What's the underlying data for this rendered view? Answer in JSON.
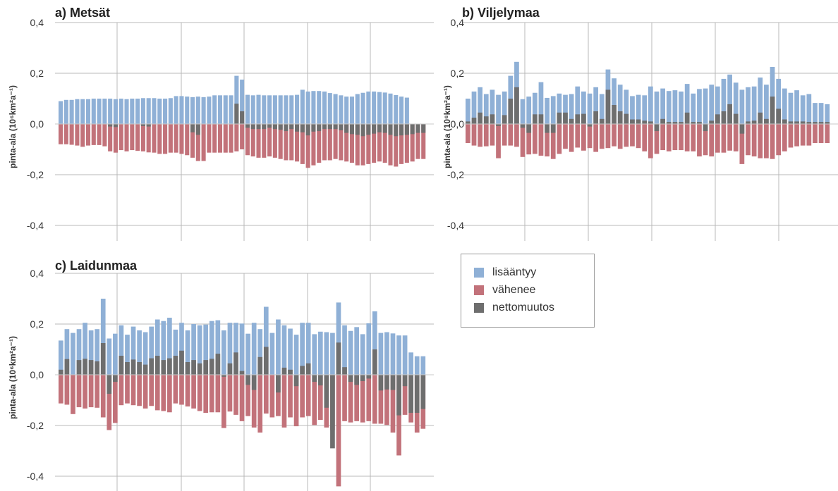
{
  "legend": [
    {
      "label": "lisääntyy",
      "color": "#8fb0d6"
    },
    {
      "label": "vähenee",
      "color": "#c2727a"
    },
    {
      "label": "nettomuutos",
      "color": "#6e6e6e"
    }
  ],
  "chart_data": [
    {
      "type": "bar",
      "title": "a) Metsät",
      "ylabel": "pinta-ala (10⁶km²a⁻¹)",
      "ylim": [
        -0.4,
        0.4
      ],
      "yticks": [
        "0,4",
        "0,2",
        "0,0",
        "-0,2",
        "-0,4"
      ],
      "grid": true,
      "series": [
        {
          "name": "lisääntyy",
          "values": [
            0.09,
            0.095,
            0.095,
            0.098,
            0.098,
            0.098,
            0.1,
            0.1,
            0.1,
            0.1,
            0.098,
            0.1,
            0.098,
            0.1,
            0.1,
            0.102,
            0.102,
            0.102,
            0.1,
            0.1,
            0.102,
            0.11,
            0.11,
            0.108,
            0.106,
            0.108,
            0.106,
            0.108,
            0.113,
            0.113,
            0.113,
            0.113,
            0.19,
            0.175,
            0.115,
            0.113,
            0.115,
            0.113,
            0.113,
            0.113,
            0.113,
            0.113,
            0.113,
            0.115,
            0.135,
            0.128,
            0.13,
            0.13,
            0.128,
            0.122,
            0.118,
            0.113,
            0.108,
            0.108,
            0.118,
            0.123,
            0.128,
            0.128,
            0.126,
            0.124,
            0.12,
            0.114,
            0.108,
            0.104
          ]
        },
        {
          "name": "vähenee",
          "values": [
            -0.08,
            -0.08,
            -0.082,
            -0.085,
            -0.09,
            -0.085,
            -0.083,
            -0.083,
            -0.088,
            -0.108,
            -0.113,
            -0.103,
            -0.108,
            -0.103,
            -0.106,
            -0.108,
            -0.112,
            -0.113,
            -0.118,
            -0.118,
            -0.113,
            -0.113,
            -0.118,
            -0.123,
            -0.133,
            -0.146,
            -0.146,
            -0.113,
            -0.113,
            -0.113,
            -0.113,
            -0.113,
            -0.108,
            -0.1,
            -0.123,
            -0.128,
            -0.133,
            -0.133,
            -0.128,
            -0.133,
            -0.138,
            -0.143,
            -0.143,
            -0.148,
            -0.158,
            -0.173,
            -0.163,
            -0.153,
            -0.143,
            -0.143,
            -0.138,
            -0.143,
            -0.148,
            -0.153,
            -0.163,
            -0.163,
            -0.158,
            -0.153,
            -0.148,
            -0.153,
            -0.163,
            -0.168,
            -0.158,
            -0.153,
            -0.148,
            -0.138,
            -0.138
          ]
        },
        {
          "name": "nettomuutos",
          "values": [
            0,
            0,
            0,
            0,
            0,
            0,
            0,
            0,
            0,
            -0.01,
            -0.012,
            0,
            0,
            0,
            0,
            -0.008,
            -0.01,
            0,
            0,
            0,
            0,
            0,
            0,
            0,
            -0.033,
            -0.043,
            0,
            0,
            0,
            0,
            0,
            0,
            0.08,
            0.05,
            -0.015,
            -0.02,
            -0.02,
            -0.02,
            -0.015,
            -0.02,
            -0.023,
            -0.028,
            -0.02,
            -0.03,
            -0.033,
            -0.045,
            -0.03,
            -0.028,
            -0.02,
            -0.02,
            -0.02,
            -0.025,
            -0.035,
            -0.04,
            -0.043,
            -0.048,
            -0.043,
            -0.038,
            -0.033,
            -0.035,
            -0.043,
            -0.048,
            -0.045,
            -0.043,
            -0.04,
            -0.035,
            -0.035
          ]
        }
      ]
    },
    {
      "type": "bar",
      "title": "b) Viljelymaa",
      "ylabel": "pinta-ala (10⁶km²a⁻¹)",
      "ylim": [
        -0.4,
        0.4
      ],
      "yticks": [
        "0,4",
        "0,2",
        "0,0",
        "-0,2",
        "-0,4"
      ],
      "grid": true,
      "series": [
        {
          "name": "lisääntyy",
          "values": [
            0.1,
            0.128,
            0.145,
            0.118,
            0.135,
            0.115,
            0.128,
            0.19,
            0.245,
            0.098,
            0.108,
            0.123,
            0.165,
            0.103,
            0.11,
            0.12,
            0.115,
            0.118,
            0.148,
            0.128,
            0.12,
            0.145,
            0.118,
            0.215,
            0.18,
            0.155,
            0.135,
            0.11,
            0.115,
            0.113,
            0.148,
            0.128,
            0.14,
            0.13,
            0.133,
            0.128,
            0.158,
            0.12,
            0.138,
            0.14,
            0.155,
            0.148,
            0.178,
            0.195,
            0.163,
            0.135,
            0.145,
            0.148,
            0.183,
            0.155,
            0.225,
            0.178,
            0.14,
            0.123,
            0.133,
            0.113,
            0.118,
            0.083,
            0.083,
            0.078
          ]
        },
        {
          "name": "vähenee",
          "values": [
            -0.075,
            -0.085,
            -0.09,
            -0.088,
            -0.085,
            -0.135,
            -0.085,
            -0.085,
            -0.09,
            -0.13,
            -0.12,
            -0.118,
            -0.125,
            -0.128,
            -0.138,
            -0.118,
            -0.098,
            -0.11,
            -0.093,
            -0.105,
            -0.095,
            -0.11,
            -0.098,
            -0.095,
            -0.088,
            -0.098,
            -0.09,
            -0.088,
            -0.095,
            -0.108,
            -0.135,
            -0.118,
            -0.103,
            -0.108,
            -0.103,
            -0.103,
            -0.108,
            -0.108,
            -0.128,
            -0.123,
            -0.128,
            -0.113,
            -0.113,
            -0.105,
            -0.108,
            -0.158,
            -0.123,
            -0.128,
            -0.135,
            -0.135,
            -0.138,
            -0.123,
            -0.108,
            -0.093,
            -0.088,
            -0.085,
            -0.085,
            -0.075,
            -0.075,
            -0.075
          ]
        },
        {
          "name": "nettomuutos",
          "values": [
            0.01,
            0.025,
            0.045,
            0.03,
            0.038,
            -0.008,
            0.035,
            0.1,
            0.145,
            -0.015,
            -0.035,
            0.038,
            0.038,
            -0.035,
            -0.035,
            0.045,
            0.045,
            0.02,
            0.038,
            0.04,
            -0.01,
            0.05,
            0.02,
            0.135,
            0.075,
            0.05,
            0.04,
            0.018,
            0.018,
            0.013,
            0.01,
            -0.028,
            0.02,
            0.008,
            0.008,
            0.008,
            0.045,
            0.008,
            0.008,
            -0.028,
            0.013,
            0.038,
            0.05,
            0.078,
            0.04,
            -0.038,
            0.01,
            0.013,
            0.045,
            0.02,
            0.108,
            0.06,
            0.018,
            0.01,
            0.01,
            0.01,
            0.008,
            0.008,
            0.008,
            0.008
          ]
        }
      ]
    },
    {
      "type": "bar",
      "title": "c) Laidunmaa",
      "ylabel": "pinta-ala (10⁶km²a⁻¹)",
      "ylim": [
        -0.4,
        0.4
      ],
      "yticks": [
        "0,4",
        "0,2",
        "0,0",
        "-0,2",
        "-0,4"
      ],
      "grid": true,
      "series": [
        {
          "name": "lisääntyy",
          "values": [
            0.135,
            0.18,
            0.165,
            0.18,
            0.205,
            0.175,
            0.18,
            0.3,
            0.143,
            0.162,
            0.195,
            0.158,
            0.19,
            0.175,
            0.168,
            0.19,
            0.218,
            0.212,
            0.225,
            0.178,
            0.205,
            0.175,
            0.2,
            0.195,
            0.198,
            0.212,
            0.215,
            0.175,
            0.205,
            0.205,
            0.202,
            0.162,
            0.205,
            0.18,
            0.268,
            0.165,
            0.218,
            0.195,
            0.182,
            0.158,
            0.205,
            0.205,
            0.16,
            0.17,
            0.168,
            0.165,
            0.285,
            0.195,
            0.173,
            0.188,
            0.16,
            0.203,
            0.25,
            0.165,
            0.168,
            0.163,
            0.155,
            0.155,
            0.088,
            0.073,
            0.073
          ]
        },
        {
          "name": "vähenee",
          "values": [
            -0.113,
            -0.118,
            -0.155,
            -0.128,
            -0.133,
            -0.128,
            -0.13,
            -0.168,
            -0.218,
            -0.19,
            -0.12,
            -0.113,
            -0.12,
            -0.123,
            -0.133,
            -0.123,
            -0.14,
            -0.143,
            -0.148,
            -0.113,
            -0.118,
            -0.125,
            -0.133,
            -0.143,
            -0.15,
            -0.148,
            -0.148,
            -0.21,
            -0.145,
            -0.158,
            -0.183,
            -0.163,
            -0.208,
            -0.228,
            -0.153,
            -0.168,
            -0.163,
            -0.208,
            -0.168,
            -0.203,
            -0.168,
            -0.163,
            -0.198,
            -0.178,
            -0.208,
            -0.218,
            -0.44,
            -0.183,
            -0.188,
            -0.183,
            -0.188,
            -0.183,
            -0.193,
            -0.193,
            -0.198,
            -0.228,
            -0.318,
            -0.158,
            -0.188,
            -0.228,
            -0.213
          ]
        },
        {
          "name": "nettomuutos",
          "values": [
            0.02,
            0.062,
            0,
            0.058,
            0.063,
            0.058,
            0.053,
            0.125,
            -0.075,
            -0.028,
            0.075,
            0.05,
            0.06,
            0.05,
            0.04,
            0.065,
            0.075,
            0.058,
            0.065,
            0.075,
            0.095,
            0.05,
            0.058,
            0.045,
            0.058,
            0.063,
            0.083,
            -0.008,
            0.045,
            0.088,
            0.015,
            -0.04,
            -0.06,
            0.07,
            0.11,
            0,
            -0.07,
            0.028,
            0.02,
            -0.045,
            0.035,
            0.045,
            -0.028,
            -0.042,
            -0.13,
            -0.29,
            0.127,
            0.03,
            -0.028,
            -0.04,
            -0.025,
            -0.015,
            0.1,
            -0.062,
            -0.058,
            -0.06,
            -0.16,
            -0.045,
            -0.15,
            -0.15,
            -0.135
          ]
        }
      ]
    }
  ]
}
